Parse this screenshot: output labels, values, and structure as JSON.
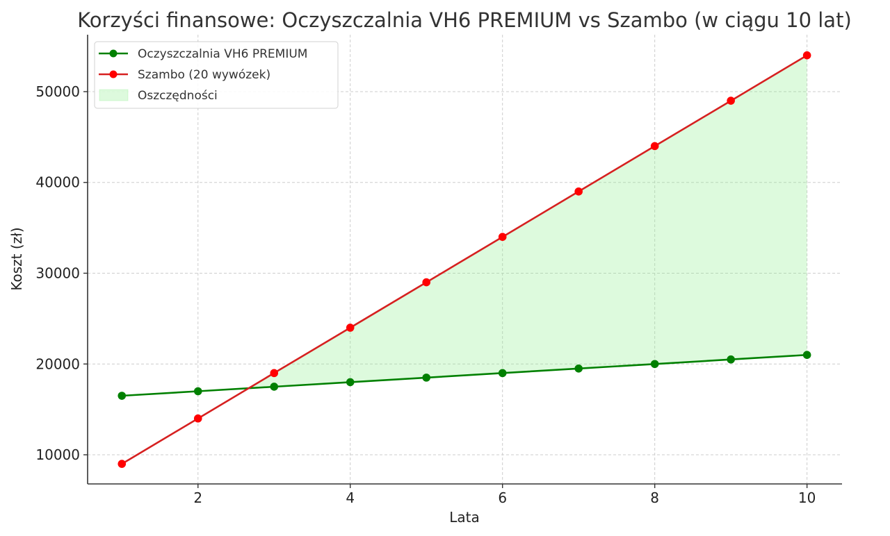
{
  "chart_data": {
    "type": "line",
    "title": "Korzyści finansowe: Oczyszczalnia VH6 PREMIUM vs Szambo (w ciągu 10 lat)",
    "xlabel": "Lata",
    "ylabel": "Koszt (zł)",
    "x": [
      1,
      2,
      3,
      4,
      5,
      6,
      7,
      8,
      9,
      10
    ],
    "series": [
      {
        "name": "Oczyszczalnia VH6 PREMIUM",
        "color": "#008000",
        "marker": "circle",
        "values": [
          16500,
          17000,
          17500,
          18000,
          18500,
          19000,
          19500,
          20000,
          20500,
          21000
        ]
      },
      {
        "name": "Szambo (20 wywózek)",
        "color": "#ff0000",
        "line_color": "#d62020",
        "marker": "circle",
        "values": [
          9000,
          14000,
          19000,
          24000,
          29000,
          34000,
          39000,
          44000,
          49000,
          54000
        ]
      }
    ],
    "fill_between": {
      "name": "Oszczędności",
      "color": "#90ee90",
      "alpha": 0.3,
      "where": "Szambo > Oczyszczalnia"
    },
    "xticks": [
      2,
      4,
      6,
      8,
      10
    ],
    "yticks": [
      10000,
      20000,
      30000,
      40000,
      50000
    ],
    "xlim": [
      0.55,
      10.46
    ],
    "ylim": [
      6790,
      56270
    ],
    "grid": true,
    "legend_position": "upper left"
  },
  "legend": {
    "items": [
      {
        "label": "Oczyszczalnia VH6 PREMIUM"
      },
      {
        "label": "Szambo (20 wywózek)"
      },
      {
        "label": "Oszczędności"
      }
    ]
  }
}
